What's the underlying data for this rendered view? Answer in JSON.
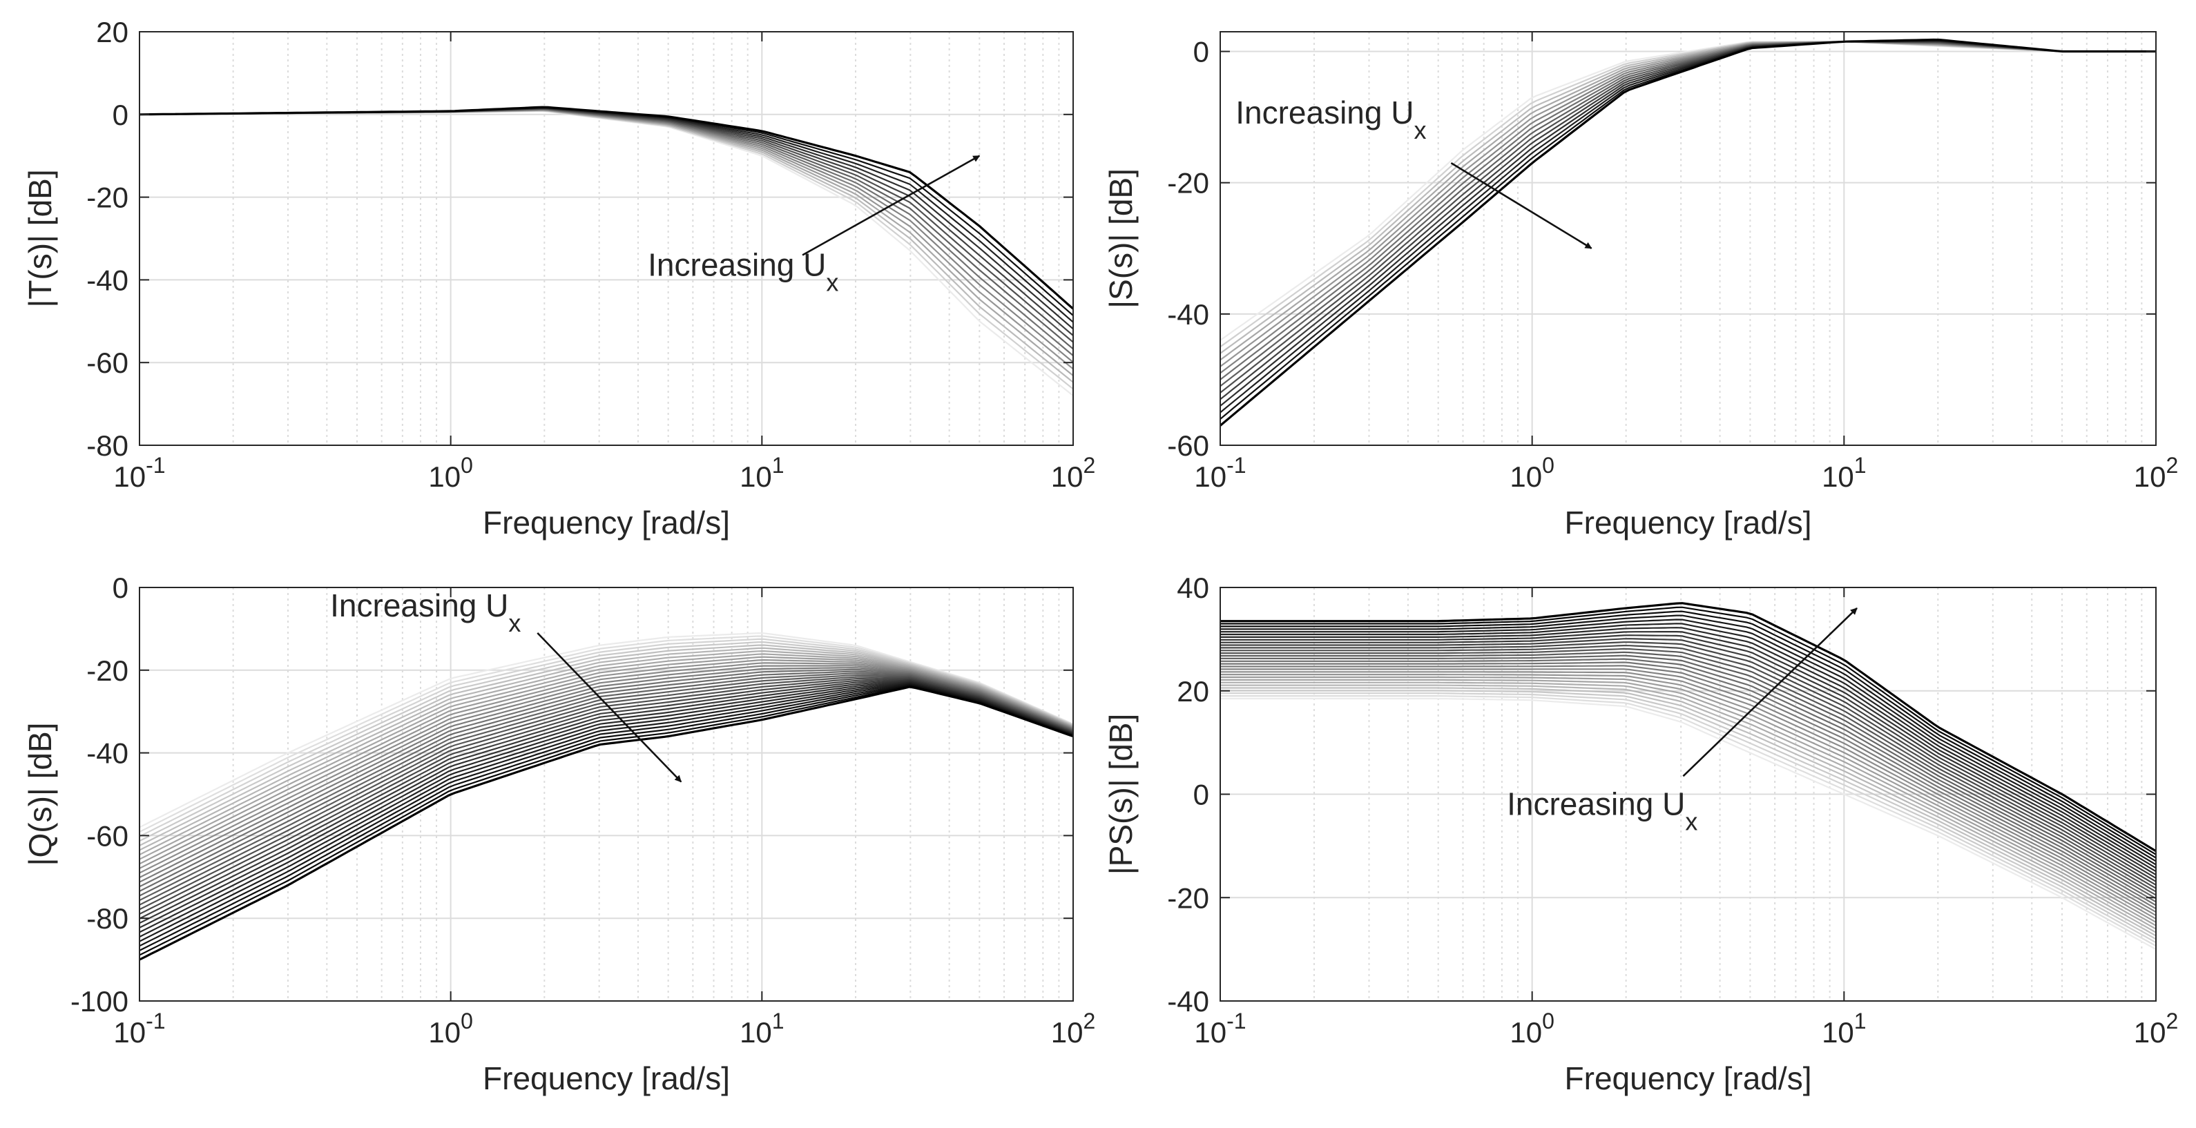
{
  "figure": {
    "background": "#ffffff",
    "grid_color": "#dcdcdc",
    "axis_color": "#262626"
  },
  "chart_data": [
    {
      "id": "T",
      "type": "line",
      "xscale": "log",
      "xlim": [
        0.1,
        100
      ],
      "ylim": [
        -80,
        20
      ],
      "xticks": [
        {
          "value": 0.1,
          "base": "10",
          "exp": "-1"
        },
        {
          "value": 1,
          "base": "10",
          "exp": "0"
        },
        {
          "value": 10,
          "base": "10",
          "exp": "1"
        },
        {
          "value": 100,
          "base": "10",
          "exp": "2"
        }
      ],
      "yticks": [
        20,
        0,
        -20,
        -40,
        -60,
        -80
      ],
      "xlabel": "Frequency [rad/s]",
      "ylabel": "|T(s)| [dB]",
      "grid": true,
      "legend": "none",
      "series_count": 14,
      "series_model": "family of magnitude curves, light gray (low U_x) to black (high U_x)",
      "series_range": {
        "first": {
          "x": [
            0.1,
            1,
            2,
            5,
            10,
            20,
            30,
            50,
            100
          ],
          "y": [
            0,
            0.5,
            0.8,
            -3,
            -10,
            -22,
            -33,
            -50,
            -68
          ]
        },
        "last": {
          "x": [
            0.1,
            1,
            2,
            5,
            10,
            20,
            30,
            50,
            100
          ],
          "y": [
            0,
            0.8,
            1.8,
            -0.5,
            -4,
            -10,
            -14,
            -27,
            -47
          ]
        }
      },
      "annotation": {
        "text": "Increasing U",
        "subscript": "x",
        "text_at": {
          "x": 4.3,
          "y": -39
        },
        "arrow_from": {
          "x": 13.5,
          "y": -34
        },
        "arrow_to": {
          "x": 50,
          "y": -10
        }
      }
    },
    {
      "id": "S",
      "type": "line",
      "xscale": "log",
      "xlim": [
        0.1,
        100
      ],
      "ylim": [
        -60,
        3
      ],
      "xticks": [
        {
          "value": 0.1,
          "base": "10",
          "exp": "-1"
        },
        {
          "value": 1,
          "base": "10",
          "exp": "0"
        },
        {
          "value": 10,
          "base": "10",
          "exp": "1"
        },
        {
          "value": 100,
          "base": "10",
          "exp": "2"
        }
      ],
      "yticks": [
        0,
        -20,
        -40,
        -60
      ],
      "xlabel": "Frequency [rad/s]",
      "ylabel": "|S(s)| [dB]",
      "grid": true,
      "legend": "none",
      "series_count": 14,
      "series_model": "family of magnitude curves, light gray (low U_x) to black (high U_x)",
      "series_range": {
        "first": {
          "x": [
            0.1,
            0.3,
            0.6,
            1,
            2,
            5,
            10,
            20,
            50,
            100
          ],
          "y": [
            -44,
            -28,
            -15,
            -7,
            -1.5,
            1.5,
            1.5,
            0.8,
            0,
            0
          ]
        },
        "last": {
          "x": [
            0.1,
            0.3,
            0.6,
            1,
            2,
            5,
            10,
            20,
            50,
            100
          ],
          "y": [
            -57,
            -38,
            -26,
            -17,
            -6,
            0.5,
            1.5,
            1.8,
            0,
            0
          ]
        }
      },
      "annotation": {
        "text": "Increasing U",
        "subscript": "x",
        "text_at": {
          "x": 0.112,
          "y": -11
        },
        "arrow_from": {
          "x": 0.55,
          "y": -17
        },
        "arrow_to": {
          "x": 1.55,
          "y": -30
        }
      }
    },
    {
      "id": "Q",
      "type": "line",
      "xscale": "log",
      "xlim": [
        0.1,
        100
      ],
      "ylim": [
        -100,
        0
      ],
      "xticks": [
        {
          "value": 0.1,
          "base": "10",
          "exp": "-1"
        },
        {
          "value": 1,
          "base": "10",
          "exp": "0"
        },
        {
          "value": 10,
          "base": "10",
          "exp": "1"
        },
        {
          "value": 100,
          "base": "10",
          "exp": "2"
        }
      ],
      "yticks": [
        0,
        -20,
        -40,
        -60,
        -80,
        -100
      ],
      "xlabel": "Frequency [rad/s]",
      "ylabel": "|Q(s)| [dB]",
      "grid": true,
      "legend": "none",
      "series_count": 30,
      "series_model": "family of magnitude curves, light gray (low U_x) to black (high U_x)",
      "series_range": {
        "first": {
          "x": [
            0.1,
            0.3,
            1,
            3,
            5,
            10,
            20,
            30,
            50,
            100
          ],
          "y": [
            -58,
            -40,
            -22,
            -14,
            -12,
            -11,
            -14,
            -18,
            -23,
            -33
          ]
        },
        "last": {
          "x": [
            0.1,
            0.3,
            1,
            3,
            5,
            10,
            20,
            30,
            50,
            100
          ],
          "y": [
            -90,
            -72,
            -50,
            -38,
            -36,
            -32,
            -27,
            -24,
            -28,
            -36
          ]
        }
      },
      "annotation": {
        "text": "Increasing U",
        "subscript": "x",
        "text_at": {
          "x": 0.41,
          "y": -7
        },
        "arrow_from": {
          "x": 1.9,
          "y": -11
        },
        "arrow_to": {
          "x": 5.5,
          "y": -47
        }
      }
    },
    {
      "id": "PS",
      "type": "line",
      "xscale": "log",
      "xlim": [
        0.1,
        100
      ],
      "ylim": [
        -40,
        40
      ],
      "xticks": [
        {
          "value": 0.1,
          "base": "10",
          "exp": "-1"
        },
        {
          "value": 1,
          "base": "10",
          "exp": "0"
        },
        {
          "value": 10,
          "base": "10",
          "exp": "1"
        },
        {
          "value": 100,
          "base": "10",
          "exp": "2"
        }
      ],
      "yticks": [
        40,
        20,
        0,
        -20,
        -40
      ],
      "xlabel": "Frequency [rad/s]",
      "ylabel": "|PS(s)| [dB]",
      "grid": true,
      "legend": "none",
      "series_count": 30,
      "series_model": "family of magnitude curves, light gray (low U_x) to black (high U_x)",
      "series_range": {
        "first": {
          "x": [
            0.1,
            0.5,
            1,
            2,
            3,
            5,
            10,
            20,
            50,
            100
          ],
          "y": [
            18.5,
            18.5,
            18.2,
            17,
            14,
            8,
            0,
            -8,
            -20,
            -30
          ]
        },
        "last": {
          "x": [
            0.1,
            0.5,
            1,
            2,
            3,
            5,
            10,
            20,
            50,
            100
          ],
          "y": [
            33.5,
            33.5,
            34,
            36,
            37,
            35,
            26,
            13,
            0,
            -11
          ]
        }
      },
      "annotation": {
        "text": "Increasing U",
        "subscript": "x",
        "text_at": {
          "x": 0.83,
          "y": -4
        },
        "arrow_from": {
          "x": 3.05,
          "y": 3.5
        },
        "arrow_to": {
          "x": 11,
          "y": 36
        }
      }
    }
  ]
}
